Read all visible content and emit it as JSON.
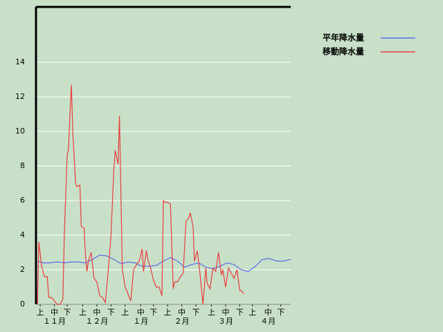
{
  "chart_data": {
    "type": "line",
    "xlim": [
      0,
      180
    ],
    "ylim": [
      0,
      17.2
    ],
    "yticks": [
      0,
      2,
      4,
      6,
      8,
      10,
      12,
      14
    ],
    "grid": true,
    "xticks": [
      {
        "value": 3,
        "label": "上"
      },
      {
        "value": 13,
        "label": "中"
      },
      {
        "value": 22,
        "label": "下"
      },
      {
        "value": 33,
        "label": "上"
      },
      {
        "value": 43,
        "label": "中"
      },
      {
        "value": 53,
        "label": "下"
      },
      {
        "value": 63,
        "label": "上"
      },
      {
        "value": 74,
        "label": "中"
      },
      {
        "value": 83,
        "label": "下"
      },
      {
        "value": 93,
        "label": "上"
      },
      {
        "value": 103,
        "label": "中"
      },
      {
        "value": 113,
        "label": "下"
      },
      {
        "value": 124,
        "label": "上"
      },
      {
        "value": 134,
        "label": "中"
      },
      {
        "value": 144,
        "label": "下"
      },
      {
        "value": 153,
        "label": "上"
      },
      {
        "value": 164,
        "label": "中"
      },
      {
        "value": 173,
        "label": "下"
      }
    ],
    "month_labels": [
      {
        "value": 13,
        "label": "１１月"
      },
      {
        "value": 43,
        "label": "１２月"
      },
      {
        "value": 74,
        "label": "１月"
      },
      {
        "value": 103,
        "label": "２月"
      },
      {
        "value": 134,
        "label": "３月"
      },
      {
        "value": 164,
        "label": "４月"
      }
    ],
    "series": [
      {
        "name": "平年降水量",
        "color": "#5a6ee8",
        "x": [
          1,
          5,
          10,
          15,
          20,
          25,
          30,
          35,
          40,
          45,
          50,
          55,
          60,
          65,
          70,
          75,
          80,
          85,
          90,
          95,
          100,
          105,
          110,
          115,
          120,
          125,
          130,
          135,
          140,
          145,
          150,
          155,
          160,
          165,
          170,
          175,
          180
        ],
        "values": [
          2.5,
          2.4,
          2.4,
          2.45,
          2.4,
          2.45,
          2.45,
          2.4,
          2.6,
          2.85,
          2.8,
          2.6,
          2.35,
          2.45,
          2.4,
          2.2,
          2.2,
          2.25,
          2.5,
          2.7,
          2.5,
          2.15,
          2.3,
          2.4,
          2.15,
          2.05,
          2.2,
          2.4,
          2.3,
          2.0,
          1.9,
          2.2,
          2.6,
          2.65,
          2.5,
          2.5,
          2.6
        ]
      },
      {
        "name": "移動降水量",
        "color": "#e83c3c",
        "x": [
          1,
          2,
          4,
          6,
          8,
          9,
          11,
          13,
          15,
          17,
          19,
          20,
          22,
          23,
          24,
          25,
          26,
          28,
          29,
          31,
          32,
          34,
          35,
          36,
          37,
          39,
          41,
          43,
          45,
          47,
          49,
          51,
          53,
          55,
          56,
          58,
          59,
          61,
          63,
          65,
          67,
          69,
          71,
          73,
          75,
          76,
          78,
          79,
          81,
          83,
          85,
          87,
          89,
          90,
          91,
          93,
          95,
          97,
          98,
          100,
          102,
          104,
          106,
          108,
          109,
          111,
          112,
          114,
          116,
          118,
          120,
          121,
          123,
          125,
          127,
          129,
          131,
          132,
          134,
          136,
          138,
          140,
          142,
          144,
          145,
          147
        ],
        "values": [
          0,
          3.6,
          2.2,
          1.6,
          1.6,
          0.4,
          0.4,
          0.2,
          0,
          0,
          0.3,
          4,
          8.6,
          9,
          11,
          12.7,
          10,
          7,
          6.8,
          6.9,
          4.5,
          4.4,
          2.8,
          1.9,
          2.5,
          3,
          1.5,
          1.3,
          0.5,
          0.4,
          0.1,
          1.9,
          4,
          7.8,
          8.9,
          8.1,
          10.9,
          2,
          1,
          0.6,
          0.2,
          2,
          2.3,
          2.5,
          3.2,
          1.9,
          3.1,
          2.6,
          2.1,
          1.4,
          1,
          1,
          0.5,
          6,
          5.9,
          5.9,
          5.8,
          0.9,
          1.3,
          1.3,
          1.6,
          1.8,
          4.8,
          5,
          5.3,
          4.5,
          2.5,
          3.1,
          1.7,
          0,
          2.1,
          1.2,
          0.9,
          2.1,
          1.9,
          3,
          1.7,
          2,
          1,
          2.1,
          1.8,
          1.5,
          2,
          0.8,
          0.8,
          0.6
        ]
      }
    ]
  }
}
